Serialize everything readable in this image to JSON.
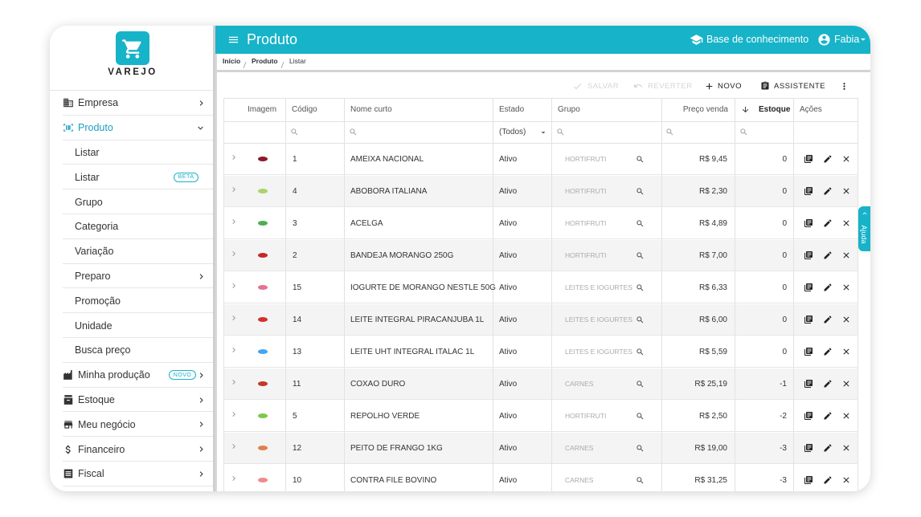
{
  "sidebar": {
    "brand": "VAREJO",
    "menu": [
      {
        "label": "Empresa"
      },
      {
        "label": "Produto",
        "children": [
          {
            "label": "Listar"
          },
          {
            "label": "Listar",
            "badge": "BETA"
          },
          {
            "label": "Grupo"
          },
          {
            "label": "Categoria"
          },
          {
            "label": "Variação"
          },
          {
            "label": "Preparo"
          },
          {
            "label": "Promoção"
          },
          {
            "label": "Unidade"
          },
          {
            "label": "Busca preço"
          }
        ]
      },
      {
        "label": "Minha produção",
        "badge": "NOVO"
      },
      {
        "label": "Estoque"
      },
      {
        "label": "Meu negócio"
      },
      {
        "label": "Financeiro"
      },
      {
        "label": "Fiscal"
      }
    ]
  },
  "header": {
    "title": "Produto",
    "help_link": "Base de conhecimento",
    "user": "Fabia"
  },
  "breadcrumb": [
    "Início",
    "Produto",
    "Listar"
  ],
  "toolbar": {
    "save": "SALVAR",
    "revert": "REVERTER",
    "new": "NOVO",
    "assistant": "ASSISTENTE"
  },
  "table": {
    "columns": [
      "Imagem",
      "Código",
      "Nome curto",
      "Estado",
      "Grupo",
      "Preço venda",
      "Estoque",
      "Ações"
    ],
    "state_filter": "(Todos)",
    "rows": [
      {
        "code": 1,
        "name": "AMEIXA NACIONAL",
        "state": "Ativo",
        "group": "HORTIFRUTI",
        "price": "R$ 9,45",
        "stock": 0
      },
      {
        "code": 4,
        "name": "ABOBORA ITALIANA",
        "state": "Ativo",
        "group": "HORTIFRUTI",
        "price": "R$ 2,30",
        "stock": 0
      },
      {
        "code": 3,
        "name": "ACELGA",
        "state": "Ativo",
        "group": "HORTIFRUTI",
        "price": "R$ 4,89",
        "stock": 0
      },
      {
        "code": 2,
        "name": "BANDEJA MORANGO 250G",
        "state": "Ativo",
        "group": "HORTIFRUTI",
        "price": "R$ 7,00",
        "stock": 0
      },
      {
        "code": 15,
        "name": "IOGURTE DE MORANGO NESTLE 50G",
        "state": "Ativo",
        "group": "LEITES E IOGURTES",
        "price": "R$ 6,33",
        "stock": 0
      },
      {
        "code": 14,
        "name": "LEITE INTEGRAL PIRACANJUBA 1L",
        "state": "Ativo",
        "group": "LEITES E IOGURTES",
        "price": "R$ 6,00",
        "stock": 0
      },
      {
        "code": 13,
        "name": "LEITE UHT INTEGRAL ITALAC 1L",
        "state": "Ativo",
        "group": "LEITES E IOGURTES",
        "price": "R$ 5,59",
        "stock": 0
      },
      {
        "code": 11,
        "name": "COXAO DURO",
        "state": "Ativo",
        "group": "CARNES",
        "price": "R$ 25,19",
        "stock": -1
      },
      {
        "code": 5,
        "name": "REPOLHO VERDE",
        "state": "Ativo",
        "group": "HORTIFRUTI",
        "price": "R$ 2,50",
        "stock": -2
      },
      {
        "code": 12,
        "name": "PEITO DE FRANGO 1KG",
        "state": "Ativo",
        "group": "CARNES",
        "price": "R$ 19,00",
        "stock": -3
      },
      {
        "code": 10,
        "name": "CONTRA FILE BOVINO",
        "state": "Ativo",
        "group": "CARNES",
        "price": "R$ 31,25",
        "stock": -3
      }
    ]
  },
  "help_tab": "Ajuda"
}
